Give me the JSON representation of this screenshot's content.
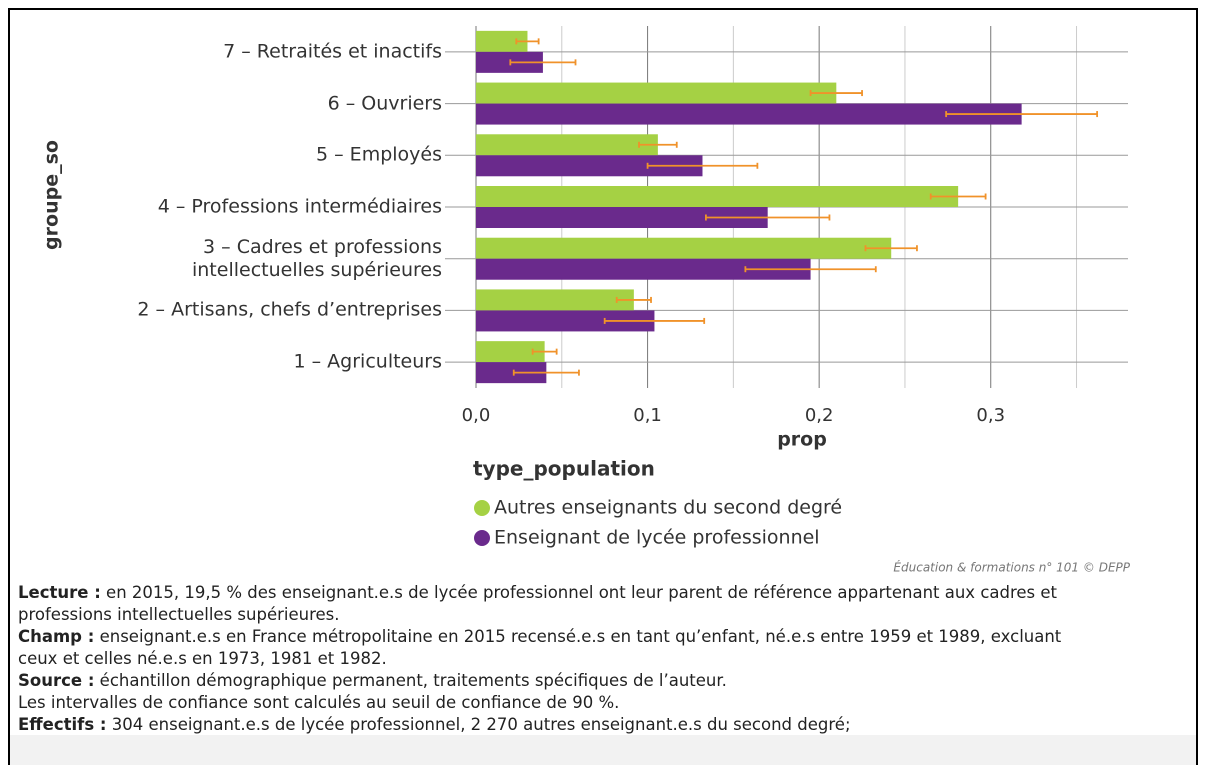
{
  "chart_data": {
    "type": "bar",
    "orientation": "horizontal",
    "y_axis_label": "groupe_so",
    "x_axis_label": "prop",
    "categories": [
      "7 – Retraités et inactifs",
      "6 – Ouvriers",
      "5 – Employés",
      "4 – Professions intermédiaires",
      "3 – Cadres et professions\nintellectuelles supérieures",
      "2 – Artisans, chefs d’entreprises",
      "1 – Agriculteurs"
    ],
    "series": [
      {
        "name": "Autres enseignants du second degré",
        "color": "#a5d144",
        "values": [
          0.03,
          0.21,
          0.106,
          0.281,
          0.242,
          0.092,
          0.04
        ],
        "errors": [
          0.0065,
          0.015,
          0.011,
          0.016,
          0.015,
          0.01,
          0.007
        ]
      },
      {
        "name": "Enseignant de lycée professionnel",
        "color": "#6a2a8c",
        "values": [
          0.039,
          0.318,
          0.132,
          0.17,
          0.195,
          0.104,
          0.041
        ],
        "errors": [
          0.019,
          0.044,
          0.032,
          0.036,
          0.038,
          0.029,
          0.019
        ]
      }
    ],
    "error_color": "#f0922a",
    "xlim": [
      0,
      0.38
    ],
    "xticks": [
      {
        "value": 0,
        "label": "0,0"
      },
      {
        "value": 0.1,
        "label": "0,1"
      },
      {
        "value": 0.2,
        "label": "0,2"
      },
      {
        "value": 0.3,
        "label": "0,3"
      }
    ],
    "xgrid_minor": [
      0.05,
      0.15,
      0.25,
      0.35
    ],
    "grid": true,
    "legend_title": "type_population",
    "source": "Éducation & formations n° 101 © DEPP",
    "notes": [
      {
        "label": "Lecture :",
        "text": "en 2015, 19,5 % des enseignant.e.s de lycée professionnel ont leur parent de référence appartenant aux cadres et professions intellectuelles supérieures."
      },
      {
        "label": "Champ :",
        "text": "enseignant.e.s en France métropolitaine en 2015 recensé.e.s en tant qu’enfant, né.e.s entre 1959 et 1989, excluant ceux et celles né.e.s en 1973, 1981 et 1982."
      },
      {
        "label": "Source :",
        "text": "échantillon démographique permanent, traitements spécifiques de l’auteur."
      },
      {
        "text": "Les intervalles de confiance sont calculés au seuil de confiance de 90 %."
      },
      {
        "label": "Effectifs :",
        "text": "304 enseignant.e.s de lycée professionnel, 2 270 autres enseignant.e.s du second degré;"
      }
    ]
  }
}
